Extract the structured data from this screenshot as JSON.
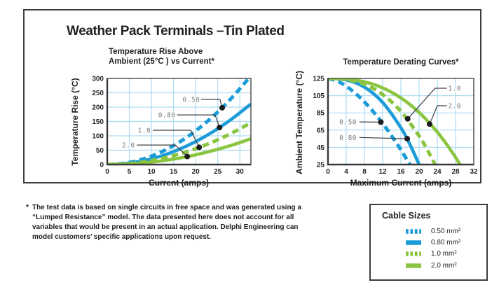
{
  "page": {
    "title": "Weather Pack Terminals –Tin Plated"
  },
  "footnote": {
    "marker": "*",
    "lines": [
      "The test data is based on single circuits in free space and was generated using a",
      "“Lumped Resistance” model. The data presented here does not account for all",
      "variables that would be present in an actual application. Delphi Engineering can",
      "model customers’ specific applications upon request."
    ]
  },
  "cable_sizes": {
    "title": "Cable Sizes",
    "items": [
      {
        "label": "0.50 mm²",
        "color": "#1b9cd8",
        "dashed": true
      },
      {
        "label": "0.80 mm²",
        "color": "#1b9cd8",
        "dashed": false
      },
      {
        "label": "1.0 mm²",
        "color": "#8bc540",
        "dashed": true
      },
      {
        "label": "2.0 mm²",
        "color": "#8bc540",
        "dashed": false
      }
    ]
  },
  "colors": {
    "blue": "#1b9cd8",
    "green": "#8bc540",
    "grid": "#aedcf2",
    "axis": "#39393b",
    "tick_text": "#231f20",
    "annotation_text": "#7a7d80",
    "leader": "#3f4043",
    "dot": "#1c1c1e"
  },
  "chart_data": [
    {
      "id": "temp-rise",
      "type": "line",
      "title_lines": [
        "Temperature Rise Above",
        "Ambient (25°C ) vs Current*"
      ],
      "xlabel": "Current (amps)",
      "ylabel": "Temperature Rise (°C)",
      "xlim": [
        0,
        32.5
      ],
      "ylim": [
        0,
        300
      ],
      "xticks": [
        0,
        5,
        10,
        15,
        20,
        25,
        30
      ],
      "yticks": [
        0,
        50,
        100,
        150,
        200,
        250,
        300
      ],
      "grid": true,
      "series": [
        {
          "name": "0.50",
          "color": "#1b9cd8",
          "dashed": true,
          "points": [
            [
              0,
              0
            ],
            [
              4,
              4.7
            ],
            [
              8,
              18.8
            ],
            [
              12,
              42.2
            ],
            [
              16,
              75.0
            ],
            [
              20,
              117.2
            ],
            [
              24,
              168.8
            ],
            [
              28,
              229.7
            ],
            [
              32,
              300
            ]
          ]
        },
        {
          "name": "0.80",
          "color": "#1b9cd8",
          "dashed": false,
          "points": [
            [
              0,
              0
            ],
            [
              4,
              3.2
            ],
            [
              8,
              12.8
            ],
            [
              12,
              28.8
            ],
            [
              16,
              51.2
            ],
            [
              20,
              80.0
            ],
            [
              24,
              115.2
            ],
            [
              28,
              156.8
            ],
            [
              32.5,
              211
            ]
          ]
        },
        {
          "name": "1.0",
          "color": "#8bc540",
          "dashed": true,
          "points": [
            [
              0,
              0
            ],
            [
              4,
              2.2
            ],
            [
              8,
              8.8
            ],
            [
              12,
              19.9
            ],
            [
              16,
              35.3
            ],
            [
              20,
              55.2
            ],
            [
              24,
              79.5
            ],
            [
              28,
              108.2
            ],
            [
              32.5,
              145.8
            ]
          ]
        },
        {
          "name": "2.0",
          "color": "#8bc540",
          "dashed": false,
          "points": [
            [
              0,
              0
            ],
            [
              4,
              1.4
            ],
            [
              8,
              5.4
            ],
            [
              12,
              12.2
            ],
            [
              16,
              21.8
            ],
            [
              20,
              34.0
            ],
            [
              24,
              49.0
            ],
            [
              28,
              66.6
            ],
            [
              32.5,
              89.8
            ]
          ]
        }
      ],
      "callouts": [
        {
          "label": "0.50",
          "label_at": [
            19.0,
            227
          ],
          "path": [
            [
              21.2,
              227
            ],
            [
              25.5,
              227
            ],
            [
              26,
              198
            ]
          ],
          "dot": [
            26,
            198
          ]
        },
        {
          "label": "0.80",
          "label_at": [
            13.5,
            173
          ],
          "path": [
            [
              15.8,
              173
            ],
            [
              24.4,
              173
            ],
            [
              25.4,
              129
            ]
          ],
          "dot": [
            25.4,
            129
          ]
        },
        {
          "label": "1.0",
          "label_at": [
            8.4,
            119.5
          ],
          "path": [
            [
              10.3,
              119.5
            ],
            [
              18.9,
              119.5
            ],
            [
              20.8,
              60
            ]
          ],
          "dot": [
            20.8,
            60
          ]
        },
        {
          "label": "2.0",
          "label_at": [
            4.8,
            68
          ],
          "path": [
            [
              6.7,
              68
            ],
            [
              15.4,
              68
            ],
            [
              18.1,
              28
            ]
          ],
          "dot": [
            18.1,
            28
          ]
        }
      ]
    },
    {
      "id": "derating",
      "type": "line",
      "title_lines": [
        "Temperature Derating Curves*"
      ],
      "xlabel": "Maximum Current (amps)",
      "ylabel": "Ambient Temperature (°C)",
      "xlim": [
        0,
        32
      ],
      "ylim": [
        25,
        125
      ],
      "xticks": [
        0,
        4,
        8,
        12,
        16,
        20,
        24,
        28,
        32
      ],
      "yticks": [
        25,
        45,
        65,
        85,
        105,
        125
      ],
      "grid": true,
      "series": [
        {
          "name": "0.50",
          "color": "#1b9cd8",
          "dashed": true,
          "points": [
            [
              0,
              125
            ],
            [
              2,
              122
            ],
            [
              4,
              116
            ],
            [
              6,
              107.8
            ],
            [
              8,
              97.7
            ],
            [
              10,
              86
            ],
            [
              12,
              72.7
            ],
            [
              14,
              58.1
            ],
            [
              16,
              42.1
            ],
            [
              18,
              25
            ]
          ]
        },
        {
          "name": "0.80",
          "color": "#1b9cd8",
          "dashed": false,
          "points": [
            [
              0,
              125
            ],
            [
              4,
              123.2
            ],
            [
              8,
              114.9
            ],
            [
              12,
              97.1
            ],
            [
              16,
              67.8
            ],
            [
              18,
              48.2
            ],
            [
              20,
              25
            ]
          ]
        },
        {
          "name": "1.0",
          "color": "#8bc540",
          "dashed": true,
          "points": [
            [
              0,
              125
            ],
            [
              4,
              123.8
            ],
            [
              8,
              118.2
            ],
            [
              12,
              106.4
            ],
            [
              16,
              86.8
            ],
            [
              20,
              58.2
            ],
            [
              22,
              40.2
            ],
            [
              23.5,
              25
            ]
          ]
        },
        {
          "name": "2.0",
          "color": "#8bc540",
          "dashed": false,
          "points": [
            [
              0,
              125
            ],
            [
              4,
              124.3
            ],
            [
              8,
              121.0
            ],
            [
              12,
              114.0
            ],
            [
              16,
              102.4
            ],
            [
              20,
              85.5
            ],
            [
              24,
              62.7
            ],
            [
              27,
              41.3
            ],
            [
              29,
              25
            ]
          ]
        }
      ],
      "callouts": [
        {
          "label": "0.50",
          "label_at": [
            4.4,
            74.5
          ],
          "path": [
            [
              6.9,
              74.5
            ],
            [
              11.6,
              74.3
            ]
          ],
          "dot": [
            11.6,
            74.3
          ]
        },
        {
          "label": "0.80",
          "label_at": [
            4.4,
            56.5
          ],
          "path": [
            [
              6.9,
              56.5
            ],
            [
              17.4,
              55
            ]
          ],
          "dot": [
            17.4,
            55
          ]
        },
        {
          "label": "1.0",
          "label_at": [
            27.8,
            113.6
          ],
          "path": [
            [
              26.1,
              113.6
            ],
            [
              23.5,
              113.6
            ],
            [
              17.5,
              78
            ]
          ],
          "dot": [
            17.5,
            78
          ]
        },
        {
          "label": "2.0",
          "label_at": [
            27.8,
            93.3
          ],
          "path": [
            [
              26.1,
              93.3
            ],
            [
              24.0,
              93.3
            ],
            [
              22.3,
              72
            ]
          ],
          "dot": [
            22.3,
            72
          ]
        }
      ]
    }
  ]
}
